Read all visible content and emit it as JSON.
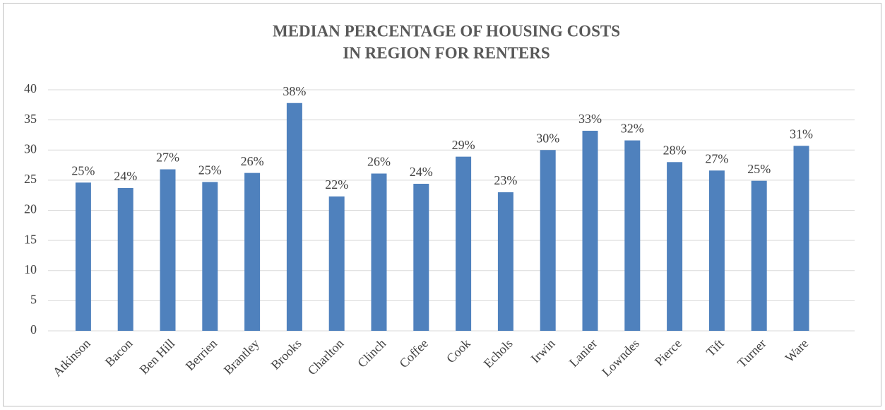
{
  "chart_data": {
    "type": "bar",
    "title": [
      "MEDIAN PERCENTAGE OF HOUSING COSTS",
      "IN REGION FOR RENTERS"
    ],
    "categories": [
      "Atkinson",
      "Bacon",
      "Ben Hill",
      "Berrien",
      "Brantley",
      "Brooks",
      "Charlton",
      "Clinch",
      "Coffee",
      "Cook",
      "Echols",
      "Irwin",
      "Lanier",
      "Lowndes",
      "Pierce",
      "Tift",
      "Turner",
      "Ware"
    ],
    "values": [
      24.6,
      23.7,
      26.8,
      24.7,
      26.2,
      37.8,
      22.3,
      26.1,
      24.4,
      28.9,
      23.0,
      30.0,
      33.2,
      31.6,
      28.0,
      26.6,
      24.9,
      30.7
    ],
    "value_labels": [
      "25%",
      "24%",
      "27%",
      "25%",
      "26%",
      "38%",
      "22%",
      "26%",
      "24%",
      "29%",
      "23%",
      "30%",
      "33%",
      "32%",
      "28%",
      "27%",
      "25%",
      "31%"
    ],
    "color": "#4f81bd",
    "ylim": [
      0,
      40
    ],
    "yticks": [
      0,
      5,
      10,
      15,
      20,
      25,
      30,
      35,
      40
    ],
    "grid": true
  }
}
